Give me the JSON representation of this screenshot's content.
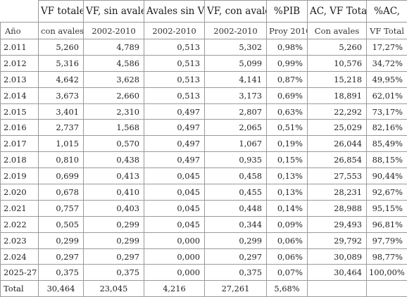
{
  "table": {
    "header_top": [
      "",
      "VF totales",
      "VF, sin avales",
      "Avales sin VF",
      "VF, con avales",
      "%PIB",
      "AC, VF Total",
      "%AC,"
    ],
    "header_sub": [
      "Año",
      "con avales",
      "2002-2010",
      "2002-2010",
      "2002-2010",
      "Proy 2010",
      "Con avales",
      "VF Total"
    ],
    "rows": [
      {
        "year": "2.011",
        "vf_totales": "5,260",
        "vf_sin_avales": "4,789",
        "avales_sin_vf": "0,513",
        "vf_con_avales": "5,302",
        "pib": "0,98%",
        "ac_vf_total": "5,260",
        "ac_pct": "17,27%"
      },
      {
        "year": "2.012",
        "vf_totales": "5,316",
        "vf_sin_avales": "4,586",
        "avales_sin_vf": "0,513",
        "vf_con_avales": "5,099",
        "pib": "0,99%",
        "ac_vf_total": "10,576",
        "ac_pct": "34,72%"
      },
      {
        "year": "2.013",
        "vf_totales": "4,642",
        "vf_sin_avales": "3,628",
        "avales_sin_vf": "0,513",
        "vf_con_avales": "4,141",
        "pib": "0,87%",
        "ac_vf_total": "15,218",
        "ac_pct": "49,95%"
      },
      {
        "year": "2.014",
        "vf_totales": "3,673",
        "vf_sin_avales": "2,660",
        "avales_sin_vf": "0,513",
        "vf_con_avales": "3,173",
        "pib": "0,69%",
        "ac_vf_total": "18,891",
        "ac_pct": "62,01%"
      },
      {
        "year": "2.015",
        "vf_totales": "3,401",
        "vf_sin_avales": "2,310",
        "avales_sin_vf": "0,497",
        "vf_con_avales": "2,807",
        "pib": "0,63%",
        "ac_vf_total": "22,292",
        "ac_pct": "73,17%"
      },
      {
        "year": "2.016",
        "vf_totales": "2,737",
        "vf_sin_avales": "1,568",
        "avales_sin_vf": "0,497",
        "vf_con_avales": "2,065",
        "pib": "0,51%",
        "ac_vf_total": "25,029",
        "ac_pct": "82,16%"
      },
      {
        "year": "2.017",
        "vf_totales": "1,015",
        "vf_sin_avales": "0,570",
        "avales_sin_vf": "0,497",
        "vf_con_avales": "1,067",
        "pib": "0,19%",
        "ac_vf_total": "26,044",
        "ac_pct": "85,49%"
      },
      {
        "year": "2.018",
        "vf_totales": "0,810",
        "vf_sin_avales": "0,438",
        "avales_sin_vf": "0,497",
        "vf_con_avales": "0,935",
        "pib": "0,15%",
        "ac_vf_total": "26,854",
        "ac_pct": "88,15%"
      },
      {
        "year": "2.019",
        "vf_totales": "0,699",
        "vf_sin_avales": "0,413",
        "avales_sin_vf": "0,045",
        "vf_con_avales": "0,458",
        "pib": "0,13%",
        "ac_vf_total": "27,553",
        "ac_pct": "90,44%"
      },
      {
        "year": "2.020",
        "vf_totales": "0,678",
        "vf_sin_avales": "0,410",
        "avales_sin_vf": "0,045",
        "vf_con_avales": "0,455",
        "pib": "0,13%",
        "ac_vf_total": "28,231",
        "ac_pct": "92,67%"
      },
      {
        "year": "2.021",
        "vf_totales": "0,757",
        "vf_sin_avales": "0,403",
        "avales_sin_vf": "0,045",
        "vf_con_avales": "0,448",
        "pib": "0,14%",
        "ac_vf_total": "28,988",
        "ac_pct": "95,15%"
      },
      {
        "year": "2.022",
        "vf_totales": "0,505",
        "vf_sin_avales": "0,299",
        "avales_sin_vf": "0,045",
        "vf_con_avales": "0,344",
        "pib": "0,09%",
        "ac_vf_total": "29,493",
        "ac_pct": "96,81%"
      },
      {
        "year": "2.023",
        "vf_totales": "0,299",
        "vf_sin_avales": "0,299",
        "avales_sin_vf": "0,000",
        "vf_con_avales": "0,299",
        "pib": "0,06%",
        "ac_vf_total": "29,792",
        "ac_pct": "97,79%"
      },
      {
        "year": "2.024",
        "vf_totales": "0,297",
        "vf_sin_avales": "0,297",
        "avales_sin_vf": "0,000",
        "vf_con_avales": "0,297",
        "pib": "0,06%",
        "ac_vf_total": "30,089",
        "ac_pct": "98,77%"
      },
      {
        "year": "2025-27",
        "vf_totales": "0,375",
        "vf_sin_avales": "0,375",
        "avales_sin_vf": "0,000",
        "vf_con_avales": "0,375",
        "pib": "0,07%",
        "ac_vf_total": "30,464",
        "ac_pct": "100,00%"
      }
    ],
    "total": {
      "year": "Total",
      "vf_totales": "30,464",
      "vf_sin_avales": "23,045",
      "avales_sin_vf": "4,216",
      "vf_con_avales": "27,261",
      "pib": "5,68%",
      "ac_vf_total": "",
      "ac_pct": ""
    }
  }
}
